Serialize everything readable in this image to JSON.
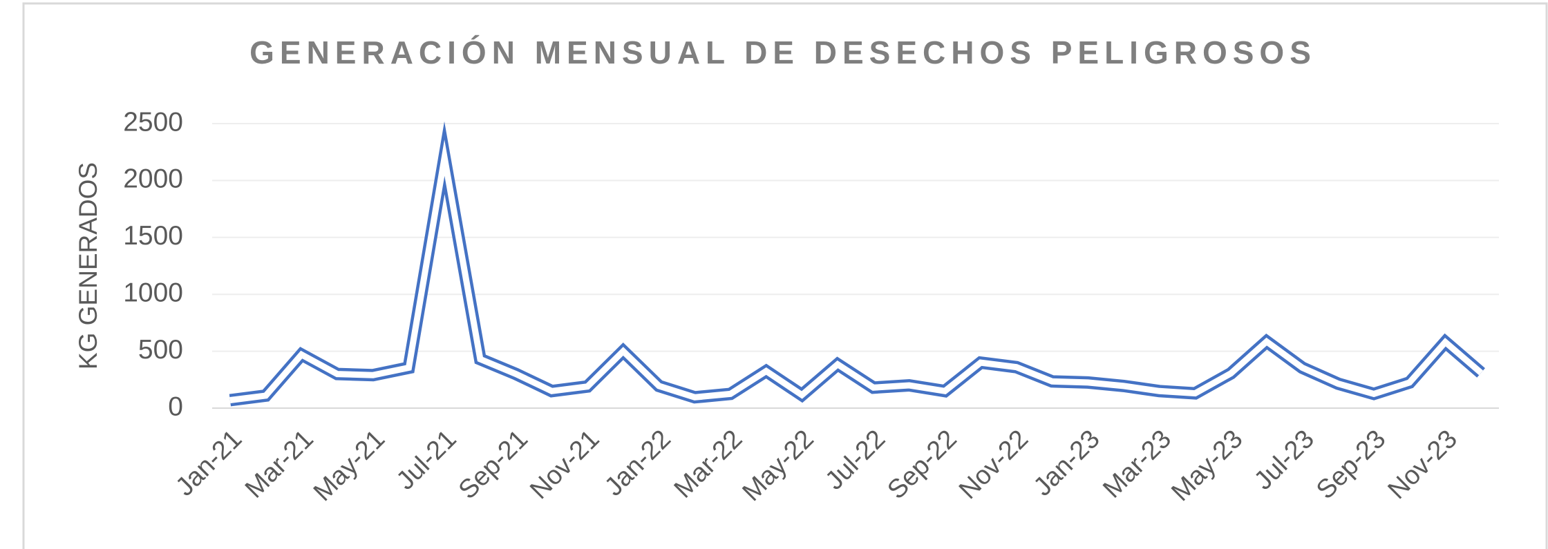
{
  "chart_data": {
    "type": "line",
    "title": "GENERACIÓN MENSUAL DE DESECHOS PELIGROSOS",
    "y_label": "KG GENERADOS",
    "categories": [
      "Jan-21",
      null,
      "Mar-21",
      null,
      "May-21",
      null,
      "Jul-21",
      null,
      "Sep-21",
      null,
      "Nov-21",
      null,
      "Jan-22",
      null,
      "Mar-22",
      null,
      "May-22",
      null,
      "Jul-22",
      null,
      "Sep-22",
      null,
      "Nov-22",
      null,
      "Jan-23",
      null,
      "Mar-23",
      null,
      "May-23",
      null,
      "Jul-23",
      null,
      "Sep-23",
      null,
      "Nov-23",
      null
    ],
    "values": [
      70,
      110,
      470,
      300,
      290,
      355,
      2200,
      430,
      300,
      150,
      190,
      500,
      195,
      95,
      125,
      325,
      115,
      385,
      180,
      200,
      150,
      400,
      360,
      235,
      225,
      195,
      150,
      130,
      305,
      585,
      355,
      215,
      125,
      225,
      580,
      310
    ],
    "color": "#4472c4",
    "ylim": [
      0,
      2500
    ],
    "yticks": [
      0,
      500,
      1000,
      1500,
      2000,
      2500
    ],
    "grid": true
  }
}
